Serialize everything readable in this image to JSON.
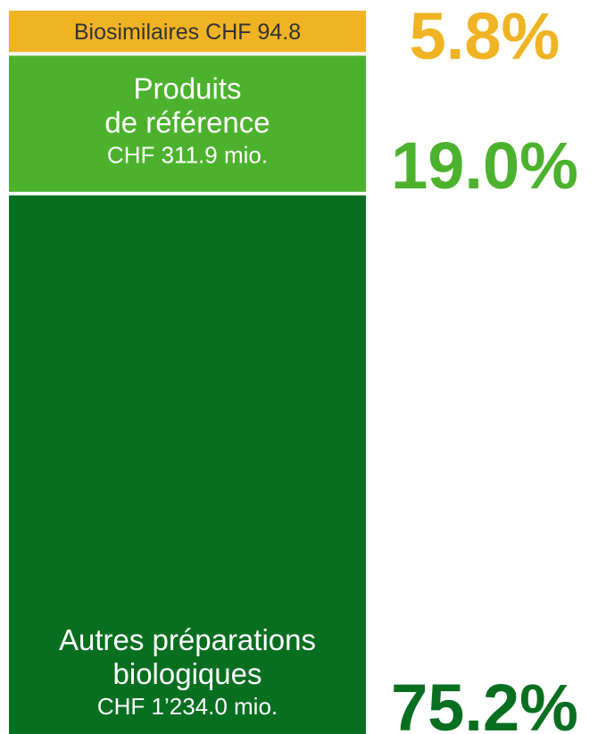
{
  "chart_data": {
    "type": "stacked_bar",
    "categories": [
      [
        "Biosimilaires"
      ],
      [
        "Produits",
        "de référence"
      ],
      [
        "Autres préparations",
        "biologiques"
      ]
    ],
    "values": [
      94.8,
      311.9,
      1234.0
    ],
    "value_labels": [
      "CHF 94.8",
      "CHF 311.9 mio.",
      "CHF 1’234.0 mio."
    ],
    "percentages": [
      5.8,
      19.0,
      75.2
    ],
    "percentage_labels": [
      "5.8%",
      "19.0%",
      "75.2%"
    ],
    "colors": [
      "#f0b323",
      "#4cb22e",
      "#086f21"
    ],
    "label_colors": [
      "#333333",
      "#ffffff",
      "#ffffff"
    ]
  }
}
